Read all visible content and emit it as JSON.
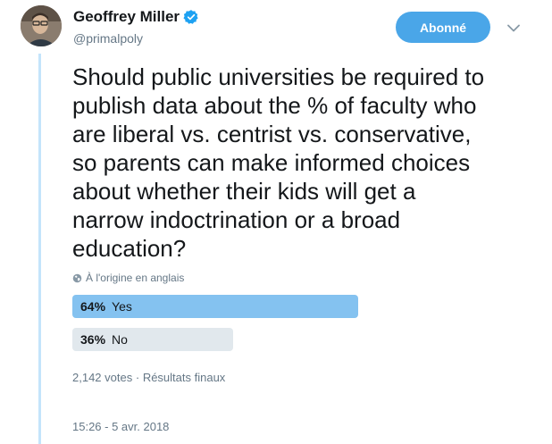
{
  "author": {
    "name": "Geoffrey Miller",
    "handle": "@primalpoly",
    "avatar_icon": "person-photo-avatar",
    "verified_icon": "verified-badge-icon",
    "verified_color": "#1da1f2"
  },
  "header": {
    "follow_label": "Abonné",
    "follow_color": "#4aa6e8",
    "caret_icon": "chevron-down-icon"
  },
  "tweet": {
    "lines": [
      "Should public universities be required to",
      "publish data about the % of faculty who",
      "are liberal vs. centrist vs. conservative,",
      "so parents can make informed choices",
      "about whether their kids will get a",
      "narrow indoctrination or a broad",
      "education?"
    ],
    "translation_note": "À l'origine en anglais",
    "translation_icon": "globe-icon"
  },
  "poll": {
    "options": [
      {
        "percent_label": "64%",
        "label": "Yes",
        "fraction": 0.64,
        "color": "#84c2f0"
      },
      {
        "percent_label": "36%",
        "label": "No",
        "fraction": 0.36,
        "color": "#e1e8ed"
      }
    ],
    "votes": "2,142 votes",
    "separator": "·",
    "status": "Résultats finaux"
  },
  "timestamp": "15:26 - 5 avr. 2018"
}
